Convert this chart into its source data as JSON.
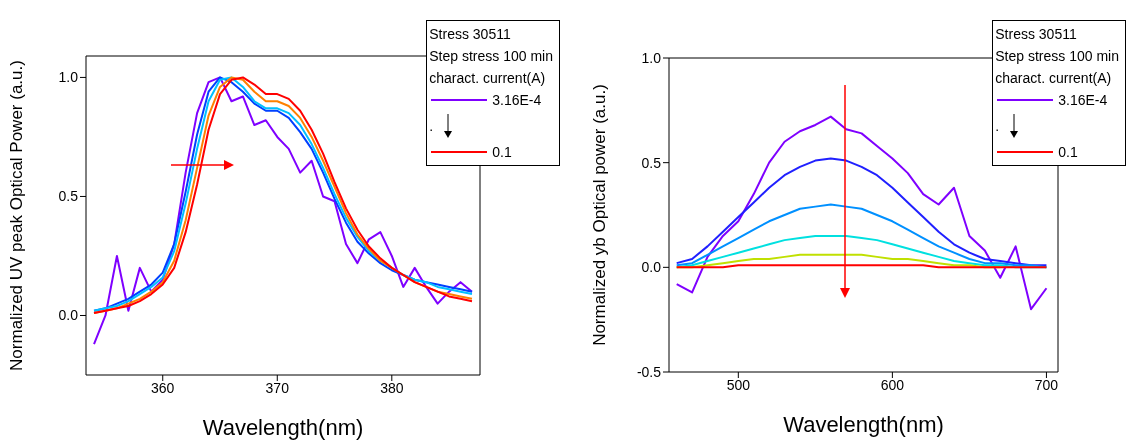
{
  "chart_data": [
    {
      "type": "line",
      "xlabel": "Wavelength(nm)",
      "ylabel": "Normalized  UV peak Optical Power (a.u.)",
      "legend_title": "Stress 30511\nStep stress 100 min\ncharact. current(A)",
      "annotations": [
        "."
      ],
      "legend": "top right",
      "marker": "none",
      "line_style": "solid",
      "xlim": [
        353.3,
        387.7
      ],
      "ylim": [
        -0.25,
        1.09
      ],
      "xticks": [
        360,
        370,
        380
      ],
      "yticks": [
        {
          "value": 0,
          "label": "0.0"
        },
        {
          "value": 0.5,
          "label": "0.5"
        },
        {
          "value": 1,
          "label": "1.0"
        }
      ],
      "x": [
        354,
        355,
        356,
        357,
        358,
        359,
        360,
        361,
        362,
        363,
        364,
        365,
        366,
        367,
        368,
        369,
        370,
        371,
        372,
        373,
        374,
        375,
        376,
        377,
        378,
        379,
        380,
        381,
        382,
        383,
        384,
        385,
        386,
        387
      ],
      "series": [
        {
          "name": "3.16E-4",
          "color": "#7f00ff",
          "values": [
            -0.12,
            0.0,
            0.25,
            0.02,
            0.2,
            0.1,
            0.15,
            0.3,
            0.6,
            0.85,
            0.98,
            1.0,
            0.9,
            0.92,
            0.8,
            0.82,
            0.75,
            0.7,
            0.6,
            0.65,
            0.5,
            0.48,
            0.3,
            0.22,
            0.32,
            0.35,
            0.25,
            0.12,
            0.2,
            0.12,
            0.05,
            0.1,
            0.14,
            0.1
          ]
        },
        {
          "color": "#0040ff",
          "values": [
            0.02,
            0.03,
            0.05,
            0.07,
            0.1,
            0.13,
            0.18,
            0.3,
            0.52,
            0.76,
            0.94,
            1.0,
            0.98,
            0.94,
            0.89,
            0.86,
            0.86,
            0.83,
            0.77,
            0.7,
            0.6,
            0.49,
            0.39,
            0.31,
            0.26,
            0.22,
            0.19,
            0.17,
            0.15,
            0.14,
            0.13,
            0.12,
            0.11,
            0.1
          ]
        },
        {
          "color": "#00c0ff",
          "values": [
            0.02,
            0.03,
            0.04,
            0.06,
            0.09,
            0.12,
            0.16,
            0.27,
            0.47,
            0.7,
            0.9,
            0.99,
            1.0,
            0.96,
            0.9,
            0.87,
            0.87,
            0.85,
            0.8,
            0.72,
            0.62,
            0.51,
            0.41,
            0.33,
            0.27,
            0.23,
            0.2,
            0.17,
            0.15,
            0.14,
            0.12,
            0.11,
            0.1,
            0.09
          ]
        },
        {
          "color": "#ff8000",
          "values": [
            0.01,
            0.02,
            0.03,
            0.05,
            0.07,
            0.1,
            0.14,
            0.23,
            0.4,
            0.62,
            0.84,
            0.96,
            1.0,
            0.99,
            0.94,
            0.9,
            0.9,
            0.88,
            0.83,
            0.75,
            0.65,
            0.54,
            0.43,
            0.34,
            0.28,
            0.23,
            0.2,
            0.17,
            0.14,
            0.12,
            0.1,
            0.09,
            0.08,
            0.07
          ]
        },
        {
          "name": "0.1",
          "color": "#ff0000",
          "values": [
            0.01,
            0.02,
            0.03,
            0.04,
            0.06,
            0.09,
            0.13,
            0.2,
            0.35,
            0.55,
            0.78,
            0.93,
            0.99,
            1.0,
            0.97,
            0.93,
            0.93,
            0.91,
            0.86,
            0.78,
            0.68,
            0.56,
            0.45,
            0.36,
            0.29,
            0.24,
            0.2,
            0.17,
            0.14,
            0.12,
            0.1,
            0.08,
            0.07,
            0.06
          ]
        }
      ]
    },
    {
      "type": "line",
      "xlabel": "Wavelength(nm)",
      "ylabel": "Normalized yb Optical power (a.u.)",
      "legend_title": "Stress 30511\nStep stress 100 min\ncharact. current(A)",
      "annotations": [
        "."
      ],
      "legend": "top right",
      "marker": "none",
      "line_style": "solid",
      "xlim": [
        455,
        707.5
      ],
      "ylim": [
        -0.5,
        1.0
      ],
      "xticks": [
        500,
        600,
        700
      ],
      "yticks": [
        {
          "value": -0.5,
          "label": "-0.5"
        },
        {
          "value": 0,
          "label": "0.0"
        },
        {
          "value": 0.5,
          "label": "0.5"
        },
        {
          "value": 1,
          "label": "1.0"
        }
      ],
      "x": [
        460,
        470,
        480,
        490,
        500,
        510,
        520,
        530,
        540,
        550,
        560,
        570,
        580,
        590,
        600,
        610,
        620,
        630,
        640,
        650,
        660,
        670,
        680,
        690,
        700
      ],
      "series": [
        {
          "name": "3.16E-4",
          "color": "#7f00ff",
          "values": [
            -0.08,
            -0.12,
            0.05,
            0.15,
            0.22,
            0.35,
            0.5,
            0.6,
            0.65,
            0.68,
            0.72,
            0.66,
            0.64,
            0.58,
            0.52,
            0.45,
            0.35,
            0.3,
            0.38,
            0.15,
            0.08,
            -0.05,
            0.1,
            -0.2,
            -0.1
          ]
        },
        {
          "color": "#2020ff",
          "values": [
            0.02,
            0.04,
            0.1,
            0.17,
            0.24,
            0.31,
            0.38,
            0.44,
            0.48,
            0.51,
            0.52,
            0.51,
            0.48,
            0.44,
            0.38,
            0.31,
            0.24,
            0.17,
            0.11,
            0.07,
            0.04,
            0.03,
            0.02,
            0.01,
            0.01
          ]
        },
        {
          "color": "#0090ff",
          "values": [
            0.01,
            0.02,
            0.06,
            0.1,
            0.14,
            0.18,
            0.22,
            0.25,
            0.28,
            0.29,
            0.3,
            0.29,
            0.28,
            0.25,
            0.22,
            0.18,
            0.14,
            0.1,
            0.07,
            0.04,
            0.02,
            0.02,
            0.01,
            0.01,
            0
          ]
        },
        {
          "color": "#00e0e0",
          "values": [
            0,
            0.01,
            0.03,
            0.05,
            0.07,
            0.09,
            0.11,
            0.13,
            0.14,
            0.15,
            0.15,
            0.15,
            0.14,
            0.13,
            0.11,
            0.09,
            0.07,
            0.05,
            0.03,
            0.02,
            0.01,
            0.01,
            0,
            0,
            0
          ]
        },
        {
          "color": "#c0e000",
          "values": [
            0,
            0,
            0.01,
            0.02,
            0.03,
            0.04,
            0.04,
            0.05,
            0.06,
            0.06,
            0.06,
            0.06,
            0.06,
            0.05,
            0.04,
            0.04,
            0.03,
            0.02,
            0.01,
            0.01,
            0,
            0,
            null,
            null,
            null
          ]
        },
        {
          "name": "0.1",
          "color": "#ff0000",
          "values": [
            0,
            0,
            0,
            0,
            0.01,
            0.01,
            0.01,
            0.01,
            0.01,
            0.01,
            0.01,
            0.01,
            0.01,
            0.01,
            0.01,
            0.01,
            0.01,
            0,
            0,
            0,
            0,
            0,
            0,
            0,
            0
          ]
        }
      ]
    }
  ]
}
